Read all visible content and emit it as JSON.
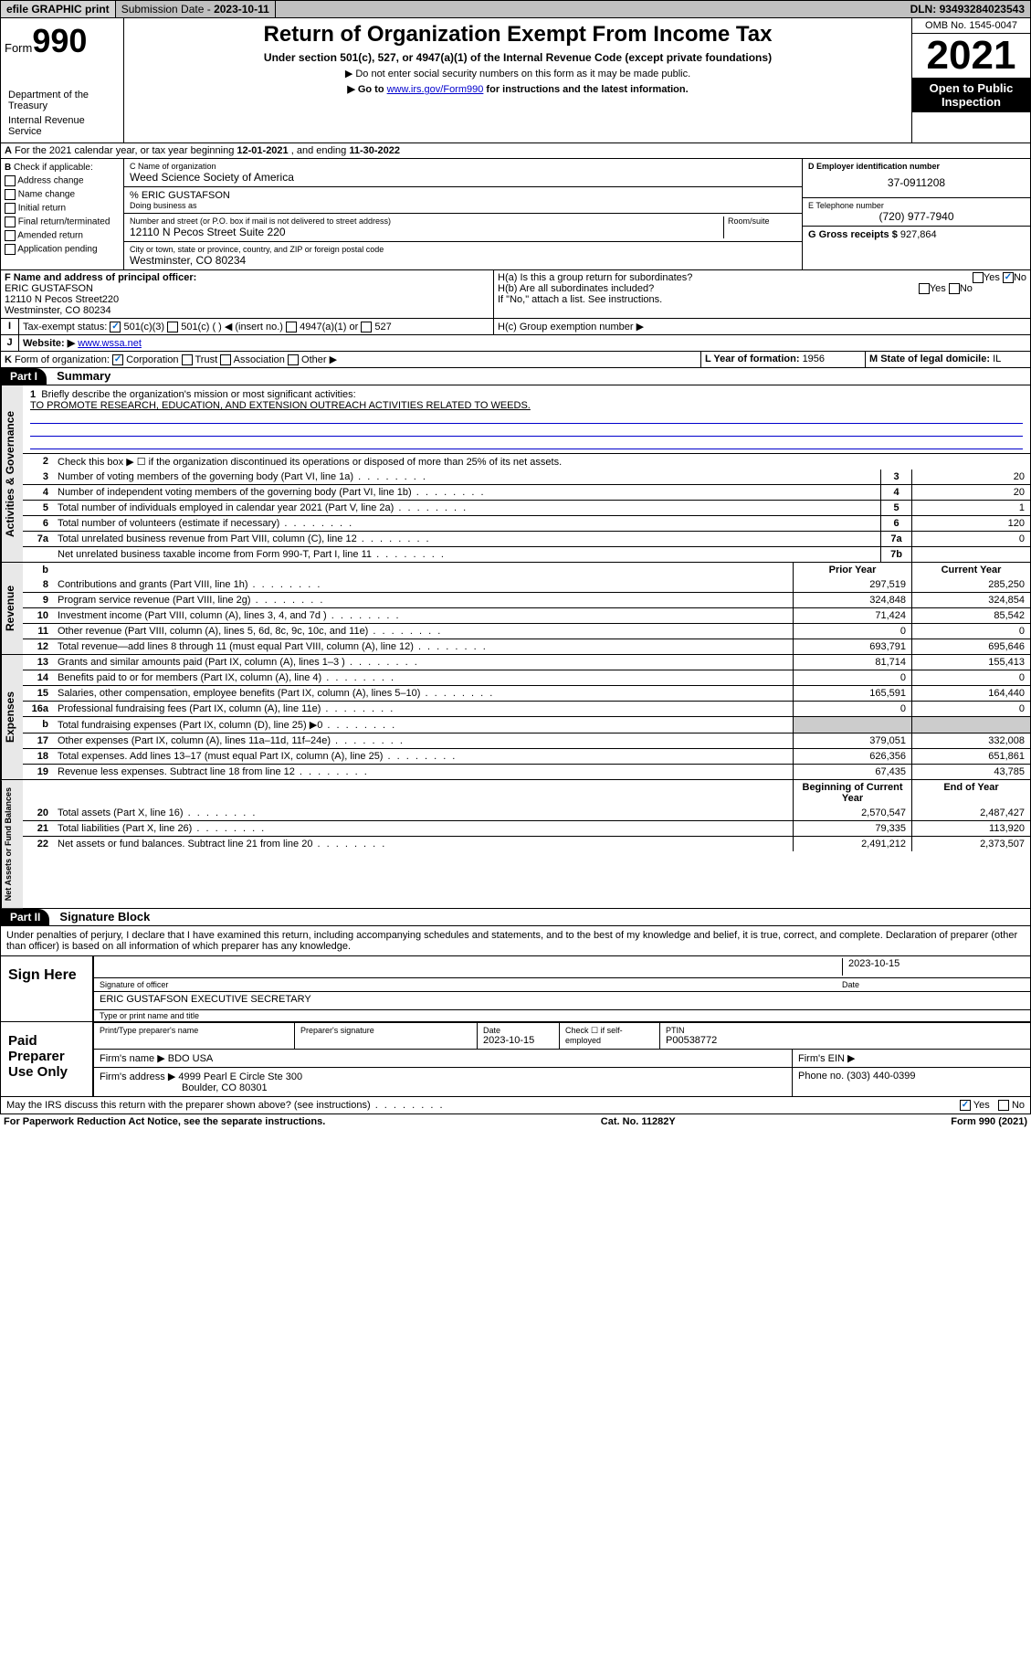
{
  "top": {
    "efile": "efile GRAPHIC print",
    "sub_lbl": "Submission Date - ",
    "sub_date": "2023-10-11",
    "dln_lbl": "DLN: ",
    "dln": "93493284023543"
  },
  "header": {
    "form_word": "Form",
    "form_num": "990",
    "dept": "Department of the Treasury",
    "irs": "Internal Revenue Service",
    "title": "Return of Organization Exempt From Income Tax",
    "sub": "Under section 501(c), 527, or 4947(a)(1) of the Internal Revenue Code (except private foundations)",
    "note1": "▶ Do not enter social security numbers on this form as it may be made public.",
    "note2_pre": "▶ Go to ",
    "note2_link": "www.irs.gov/Form990",
    "note2_post": " for instructions and the latest information.",
    "omb": "OMB No. 1545-0047",
    "year": "2021",
    "inspect": "Open to Public Inspection"
  },
  "A": {
    "text_pre": "For the 2021 calendar year, or tax year beginning ",
    "begin": "12-01-2021",
    "mid": " , and ending ",
    "end": "11-30-2022"
  },
  "B": {
    "hdr": "Check if applicable:",
    "opts": [
      "Address change",
      "Name change",
      "Initial return",
      "Final return/terminated",
      "Amended return",
      "Application pending"
    ]
  },
  "C": {
    "name_lbl": "C Name of organization",
    "name": "Weed Science Society of America",
    "care_lbl": "% ",
    "care": "ERIC GUSTAFSON",
    "dba_lbl": "Doing business as",
    "street_lbl": "Number and street (or P.O. box if mail is not delivered to street address)",
    "room_lbl": "Room/suite",
    "street": "12110 N Pecos Street Suite 220",
    "city_lbl": "City or town, state or province, country, and ZIP or foreign postal code",
    "city": "Westminster, CO  80234"
  },
  "D": {
    "lbl": "D Employer identification number",
    "val": "37-0911208"
  },
  "E": {
    "lbl": "E Telephone number",
    "val": "(720) 977-7940"
  },
  "G": {
    "lbl": "G Gross receipts $ ",
    "val": "927,864"
  },
  "F": {
    "lbl": "F  Name and address of principal officer:",
    "name": "ERIC GUSTAFSON",
    "addr1": "12110 N Pecos Street220",
    "addr2": "Westminster, CO  80234"
  },
  "H": {
    "a": "H(a)  Is this a group return for subordinates?",
    "b": "H(b)  Are all subordinates included?",
    "b_note": "If \"No,\" attach a list. See instructions.",
    "c": "H(c)  Group exemption number ▶",
    "yes": "Yes",
    "no": "No"
  },
  "I": {
    "lbl": "Tax-exempt status:",
    "o1": "501(c)(3)",
    "o2": "501(c) (  ) ◀ (insert no.)",
    "o3": "4947(a)(1) or",
    "o4": "527"
  },
  "J": {
    "lbl": "Website: ▶ ",
    "val": "www.wssa.net"
  },
  "K": {
    "lbl": "Form of organization:",
    "o1": "Corporation",
    "o2": "Trust",
    "o3": "Association",
    "o4": "Other ▶"
  },
  "L": {
    "lbl": "L Year of formation: ",
    "val": "1956"
  },
  "M": {
    "lbl": "M State of legal domicile: ",
    "val": "IL"
  },
  "part1": {
    "hdr": "Part I",
    "title": "Summary",
    "l1_lbl": "Briefly describe the organization's mission or most significant activities:",
    "l1_val": "TO PROMOTE RESEARCH, EDUCATION, AND EXTENSION OUTREACH ACTIVITIES RELATED TO WEEDS.",
    "l2": "Check this box ▶ ☐  if the organization discontinued its operations or disposed of more than 25% of its net assets.",
    "side_gov": "Activities & Governance",
    "side_rev": "Revenue",
    "side_exp": "Expenses",
    "side_net": "Net Assets or Fund Balances",
    "prior_hdr": "Prior Year",
    "curr_hdr": "Current Year",
    "boy_hdr": "Beginning of Current Year",
    "eoy_hdr": "End of Year",
    "lines_single": [
      {
        "n": "3",
        "t": "Number of voting members of the governing body (Part VI, line 1a)",
        "b": "3",
        "v": "20"
      },
      {
        "n": "4",
        "t": "Number of independent voting members of the governing body (Part VI, line 1b)",
        "b": "4",
        "v": "20"
      },
      {
        "n": "5",
        "t": "Total number of individuals employed in calendar year 2021 (Part V, line 2a)",
        "b": "5",
        "v": "1"
      },
      {
        "n": "6",
        "t": "Total number of volunteers (estimate if necessary)",
        "b": "6",
        "v": "120"
      },
      {
        "n": "7a",
        "t": "Total unrelated business revenue from Part VIII, column (C), line 12",
        "b": "7a",
        "v": "0"
      },
      {
        "n": "",
        "t": "Net unrelated business taxable income from Form 990-T, Part I, line 11",
        "b": "7b",
        "v": ""
      }
    ],
    "lines_rev": [
      {
        "n": "8",
        "t": "Contributions and grants (Part VIII, line 1h)",
        "p": "297,519",
        "c": "285,250"
      },
      {
        "n": "9",
        "t": "Program service revenue (Part VIII, line 2g)",
        "p": "324,848",
        "c": "324,854"
      },
      {
        "n": "10",
        "t": "Investment income (Part VIII, column (A), lines 3, 4, and 7d )",
        "p": "71,424",
        "c": "85,542"
      },
      {
        "n": "11",
        "t": "Other revenue (Part VIII, column (A), lines 5, 6d, 8c, 9c, 10c, and 11e)",
        "p": "0",
        "c": "0"
      },
      {
        "n": "12",
        "t": "Total revenue—add lines 8 through 11 (must equal Part VIII, column (A), line 12)",
        "p": "693,791",
        "c": "695,646"
      }
    ],
    "lines_exp": [
      {
        "n": "13",
        "t": "Grants and similar amounts paid (Part IX, column (A), lines 1–3 )",
        "p": "81,714",
        "c": "155,413"
      },
      {
        "n": "14",
        "t": "Benefits paid to or for members (Part IX, column (A), line 4)",
        "p": "0",
        "c": "0"
      },
      {
        "n": "15",
        "t": "Salaries, other compensation, employee benefits (Part IX, column (A), lines 5–10)",
        "p": "165,591",
        "c": "164,440"
      },
      {
        "n": "16a",
        "t": "Professional fundraising fees (Part IX, column (A), line 11e)",
        "p": "0",
        "c": "0"
      },
      {
        "n": "b",
        "t": "Total fundraising expenses (Part IX, column (D), line 25) ▶0",
        "p": "",
        "c": "",
        "shade": true
      },
      {
        "n": "17",
        "t": "Other expenses (Part IX, column (A), lines 11a–11d, 11f–24e)",
        "p": "379,051",
        "c": "332,008"
      },
      {
        "n": "18",
        "t": "Total expenses. Add lines 13–17 (must equal Part IX, column (A), line 25)",
        "p": "626,356",
        "c": "651,861"
      },
      {
        "n": "19",
        "t": "Revenue less expenses. Subtract line 18 from line 12",
        "p": "67,435",
        "c": "43,785"
      }
    ],
    "lines_net": [
      {
        "n": "20",
        "t": "Total assets (Part X, line 16)",
        "p": "2,570,547",
        "c": "2,487,427"
      },
      {
        "n": "21",
        "t": "Total liabilities (Part X, line 26)",
        "p": "79,335",
        "c": "113,920"
      },
      {
        "n": "22",
        "t": "Net assets or fund balances. Subtract line 21 from line 20",
        "p": "2,491,212",
        "c": "2,373,507"
      }
    ]
  },
  "part2": {
    "hdr": "Part II",
    "title": "Signature Block",
    "penalty": "Under penalties of perjury, I declare that I have examined this return, including accompanying schedules and statements, and to the best of my knowledge and belief, it is true, correct, and complete. Declaration of preparer (other than officer) is based on all information of which preparer has any knowledge.",
    "sign_here": "Sign Here",
    "sig_officer": "Signature of officer",
    "sig_date": "2023-10-15",
    "date_lbl": "Date",
    "officer_name": "ERIC GUSTAFSON  EXECUTIVE SECRETARY",
    "type_name": "Type or print name and title",
    "paid": "Paid Preparer Use Only",
    "prep_name_lbl": "Print/Type preparer's name",
    "prep_sig_lbl": "Preparer's signature",
    "prep_date": "2023-10-15",
    "self_emp": "Check ☐ if self-employed",
    "ptin_lbl": "PTIN",
    "ptin": "P00538772",
    "firm_name_lbl": "Firm's name     ▶ ",
    "firm_name": "BDO USA",
    "firm_ein_lbl": "Firm's EIN ▶",
    "firm_addr_lbl": "Firm's address ▶ ",
    "firm_addr1": "4999 Pearl E Circle Ste 300",
    "firm_addr2": "Boulder, CO  80301",
    "phone_lbl": "Phone no. ",
    "phone": "(303) 440-0399",
    "discuss": "May the IRS discuss this return with the preparer shown above? (see instructions)",
    "yes": "Yes",
    "no": "No"
  },
  "footer": {
    "left": "For Paperwork Reduction Act Notice, see the separate instructions.",
    "mid": "Cat. No. 11282Y",
    "right": "Form 990 (2021)"
  },
  "colors": {
    "link": "#0000cc",
    "check": "#0066cc",
    "shade": "#cccccc"
  }
}
